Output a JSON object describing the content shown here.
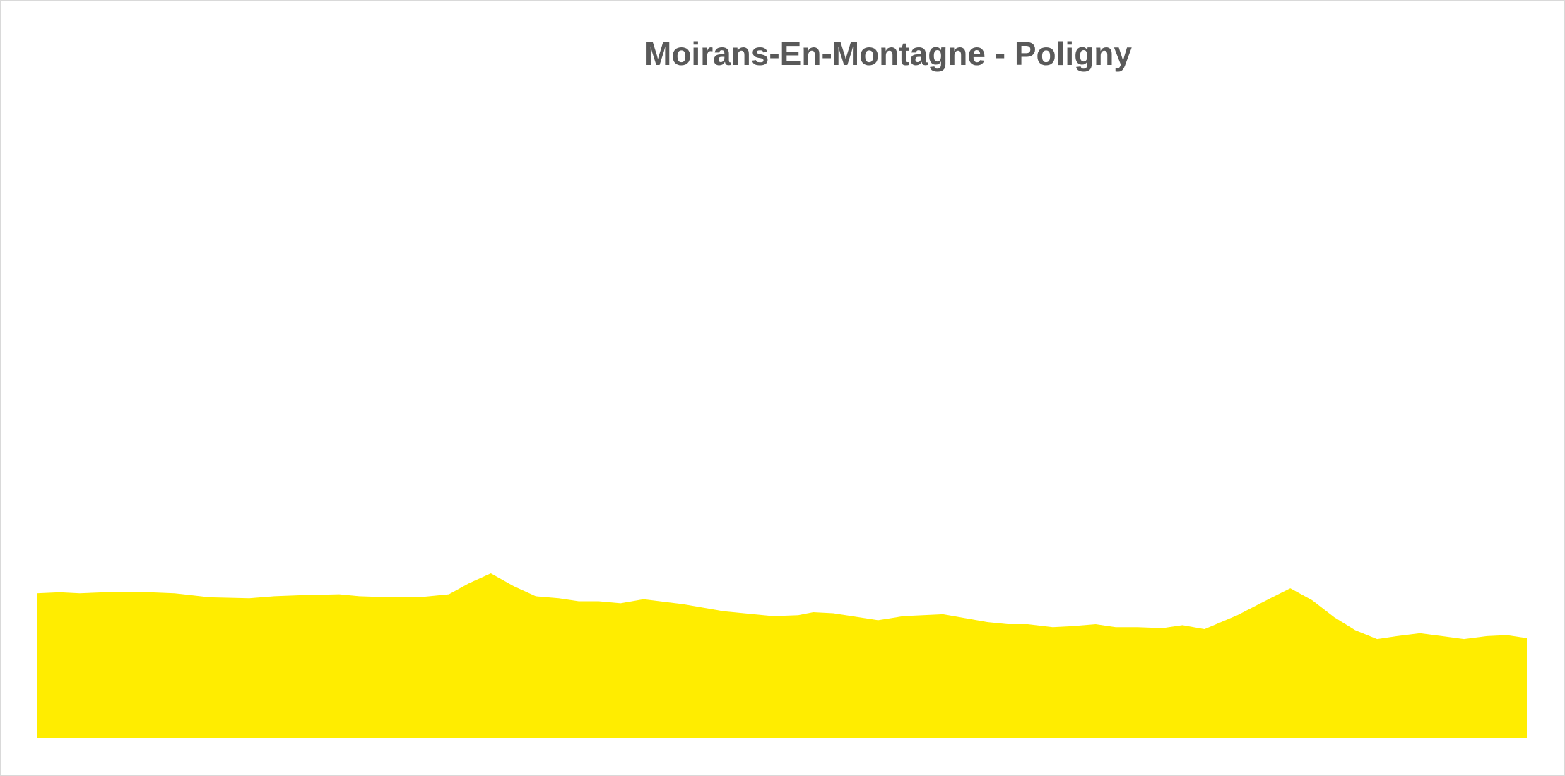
{
  "chart_data": {
    "type": "area",
    "title": "Moirans-En-Montagne - Poligny",
    "color": "#ffed00",
    "x": [
      0,
      23,
      43,
      68,
      113,
      138,
      173,
      213,
      238,
      263,
      303,
      323,
      353,
      383,
      413,
      433,
      455,
      478,
      500,
      523,
      543,
      563,
      585,
      608,
      648,
      688,
      738,
      763,
      778,
      798,
      843,
      868,
      908,
      953,
      973,
      993,
      1018,
      1038,
      1061,
      1081,
      1103,
      1128,
      1148,
      1170,
      1203,
      1238,
      1256,
      1278,
      1300,
      1321,
      1343,
      1363,
      1386,
      1408,
      1430,
      1453,
      1473,
      1493
    ],
    "values": [
      145,
      146,
      145,
      146,
      146,
      145,
      141,
      140,
      142,
      143,
      144,
      142,
      141,
      141,
      144,
      155,
      165,
      152,
      142,
      140,
      137,
      137,
      135,
      139,
      134,
      127,
      122,
      123,
      126,
      125,
      118,
      122,
      124,
      116,
      114,
      114,
      111,
      112,
      114,
      111,
      111,
      110,
      113,
      109,
      123,
      141,
      150,
      138,
      121,
      108,
      99,
      102,
      105,
      102,
      99,
      102,
      103,
      100
    ],
    "xlim": [
      0,
      1493
    ],
    "ylim": [
      0,
      640
    ]
  }
}
